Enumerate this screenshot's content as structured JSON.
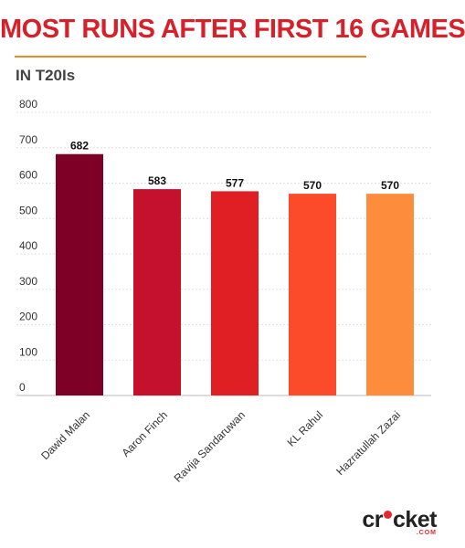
{
  "header": {
    "title": "MOST RUNS AFTER FIRST 16 GAMES",
    "subtitle": "IN T20Is"
  },
  "logo": {
    "part1": "cr",
    "part2": "cket",
    "suffix": ".COM"
  },
  "chart_data": {
    "type": "bar",
    "title": "MOST RUNS AFTER FIRST 16 GAMES",
    "subtitle": "IN T20Is",
    "xlabel": "",
    "ylabel": "",
    "ylim": [
      0,
      800
    ],
    "yticks": [
      0,
      100,
      200,
      300,
      400,
      500,
      600,
      700,
      800
    ],
    "grid": true,
    "legend": "none",
    "categories": [
      "Dawid Malan",
      "Aaron Finch",
      "Ravija Sandaruwan",
      "KL Rahul",
      "Hazratullah Zazai"
    ],
    "values": [
      682,
      583,
      577,
      570,
      570
    ],
    "colors": [
      "#7e0026",
      "#c5102e",
      "#e01f25",
      "#fb4b2a",
      "#fd8d3c"
    ]
  }
}
